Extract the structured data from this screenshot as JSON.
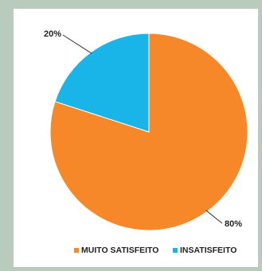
{
  "chart_data": {
    "type": "pie",
    "title": "",
    "slices": [
      {
        "label": "MUITO SATISFEITO",
        "value": 80,
        "data_label": "80%",
        "color": "#f6882a"
      },
      {
        "label": "INSATISFEITO",
        "value": 20,
        "data_label": "20%",
        "color": "#19b5e9"
      }
    ],
    "legend_position": "bottom"
  }
}
